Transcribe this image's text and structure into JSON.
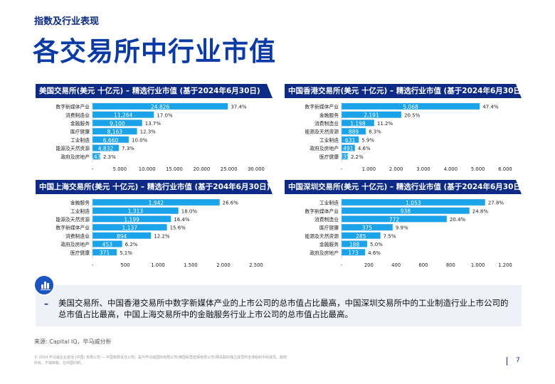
{
  "header": {
    "section_label": "指数及行业表现",
    "page_title": "各交易所中行业市值"
  },
  "chart_data": [
    {
      "type": "bar",
      "orientation": "horizontal",
      "title": "美国交易所(美元 十亿元) – 精选行业市值 (基于2024年6月30日)",
      "categories": [
        "数字新媒体产业",
        "消费制造业",
        "金融服务",
        "医疗健康",
        "工业制造",
        "能源及天然资源",
        "政府及房地产"
      ],
      "values": [
        24826,
        11264,
        9100,
        8163,
        6660,
        4832,
        1433
      ],
      "value_labels": [
        "24,826",
        "11,264",
        "9,100",
        "8,163",
        "6,660",
        "4,832",
        "1,433"
      ],
      "percent_labels": [
        "37.4%",
        "17.0%",
        "13.7%",
        "12.3%",
        "10.0%",
        "7.3%",
        "2.3%"
      ],
      "xlim": [
        0,
        30000
      ],
      "xticks": [
        "-",
        "5,000",
        "10,000",
        "15,000",
        "20,000",
        "25,000",
        "30,000"
      ]
    },
    {
      "type": "bar",
      "orientation": "horizontal",
      "title": "中国香港交易所(美元 十亿元) – 精选行业市值 (基于2024年6月30日)",
      "categories": [
        "数字新媒体产业",
        "金融服务",
        "消费制造业",
        "能源及天然资源",
        "工业制造",
        "政府及房地产",
        "医疗健康"
      ],
      "values": [
        5068,
        2191,
        1198,
        889,
        631,
        491,
        235
      ],
      "value_labels": [
        "5,068",
        "2,191",
        "1,198",
        "889",
        "631",
        "491",
        "235"
      ],
      "percent_labels": [
        "47.4%",
        "20.5%",
        "11.2%",
        "8.3%",
        "5.9%",
        "4.6%",
        "2.2%"
      ],
      "xlim": [
        0,
        6000
      ],
      "xticks": [
        "-",
        "1,000",
        "2,000",
        "3,000",
        "4,000",
        "5,000",
        "6,000"
      ]
    },
    {
      "type": "bar",
      "orientation": "horizontal",
      "title": "中国上海交易所(美元 十亿元) – 精选行业市值 (基于204年6月30日)",
      "categories": [
        "金融服务",
        "工业制造",
        "能源及天然资源",
        "数字新媒体产业",
        "消费制造业",
        "政府及房地产",
        "医疗健康"
      ],
      "values": [
        1942,
        1313,
        1199,
        1137,
        894,
        453,
        371
      ],
      "value_labels": [
        "1,942",
        "1,313",
        "1,199",
        "1,137",
        "894",
        "453",
        "371"
      ],
      "percent_labels": [
        "26.6%",
        "18.0%",
        "16.4%",
        "15.6%",
        "12.2%",
        "6.2%",
        "5.1%"
      ],
      "xlim": [
        0,
        2500
      ],
      "xticks": [
        "-",
        "500",
        "1,000",
        "1,500",
        "2,000",
        "2,500"
      ]
    },
    {
      "type": "bar",
      "orientation": "horizontal",
      "title": "中国深圳交易所(美元 十亿元) – 精选行业市值 (基于2024年6月30日)",
      "categories": [
        "工业制造",
        "数字新媒体产业",
        "消费制造业",
        "医疗健康",
        "能源及天然资源",
        "金融服务",
        "政府及房地产"
      ],
      "values": [
        1053,
        938,
        772,
        375,
        285,
        188,
        173
      ],
      "value_labels": [
        "1,053",
        "938",
        "772",
        "375",
        "285",
        "188",
        "173"
      ],
      "percent_labels": [
        "27.8%",
        "24.8%",
        "20.4%",
        "9.9%",
        "7.5%",
        "5.0%",
        "4.6%"
      ],
      "xlim": [
        0,
        1200
      ],
      "xticks": [
        "-",
        "200",
        "400",
        "600",
        "800",
        "1,000",
        "1,200"
      ]
    }
  ],
  "callout": {
    "dash": "–",
    "text": "美国交易所、中国香港交易所中数字新媒体产业的上市公司的总市值占比最高，中国深圳交易所中的工业制造行业上市公司的总市值占比最高，中国上海交易所中的金融服务行业上市公司的总市值占比最高。"
  },
  "source": "来源: Capital IQ，毕马威分析",
  "footer": "© 2024 毕马威企业咨询 (中国) 有限公司 — 中国有限责任公司，是与毕马威国际有限公司(英国私营担保有限公司)相关联的独立成员所全球组织中的成员。版权所有，不得转载。在中国印刷。",
  "page_number": "7",
  "colors": {
    "bar": "#1aa3e8",
    "header": "#0c2a86",
    "title": "#0a3aa6",
    "bar_outline": "#9fd4f5"
  }
}
